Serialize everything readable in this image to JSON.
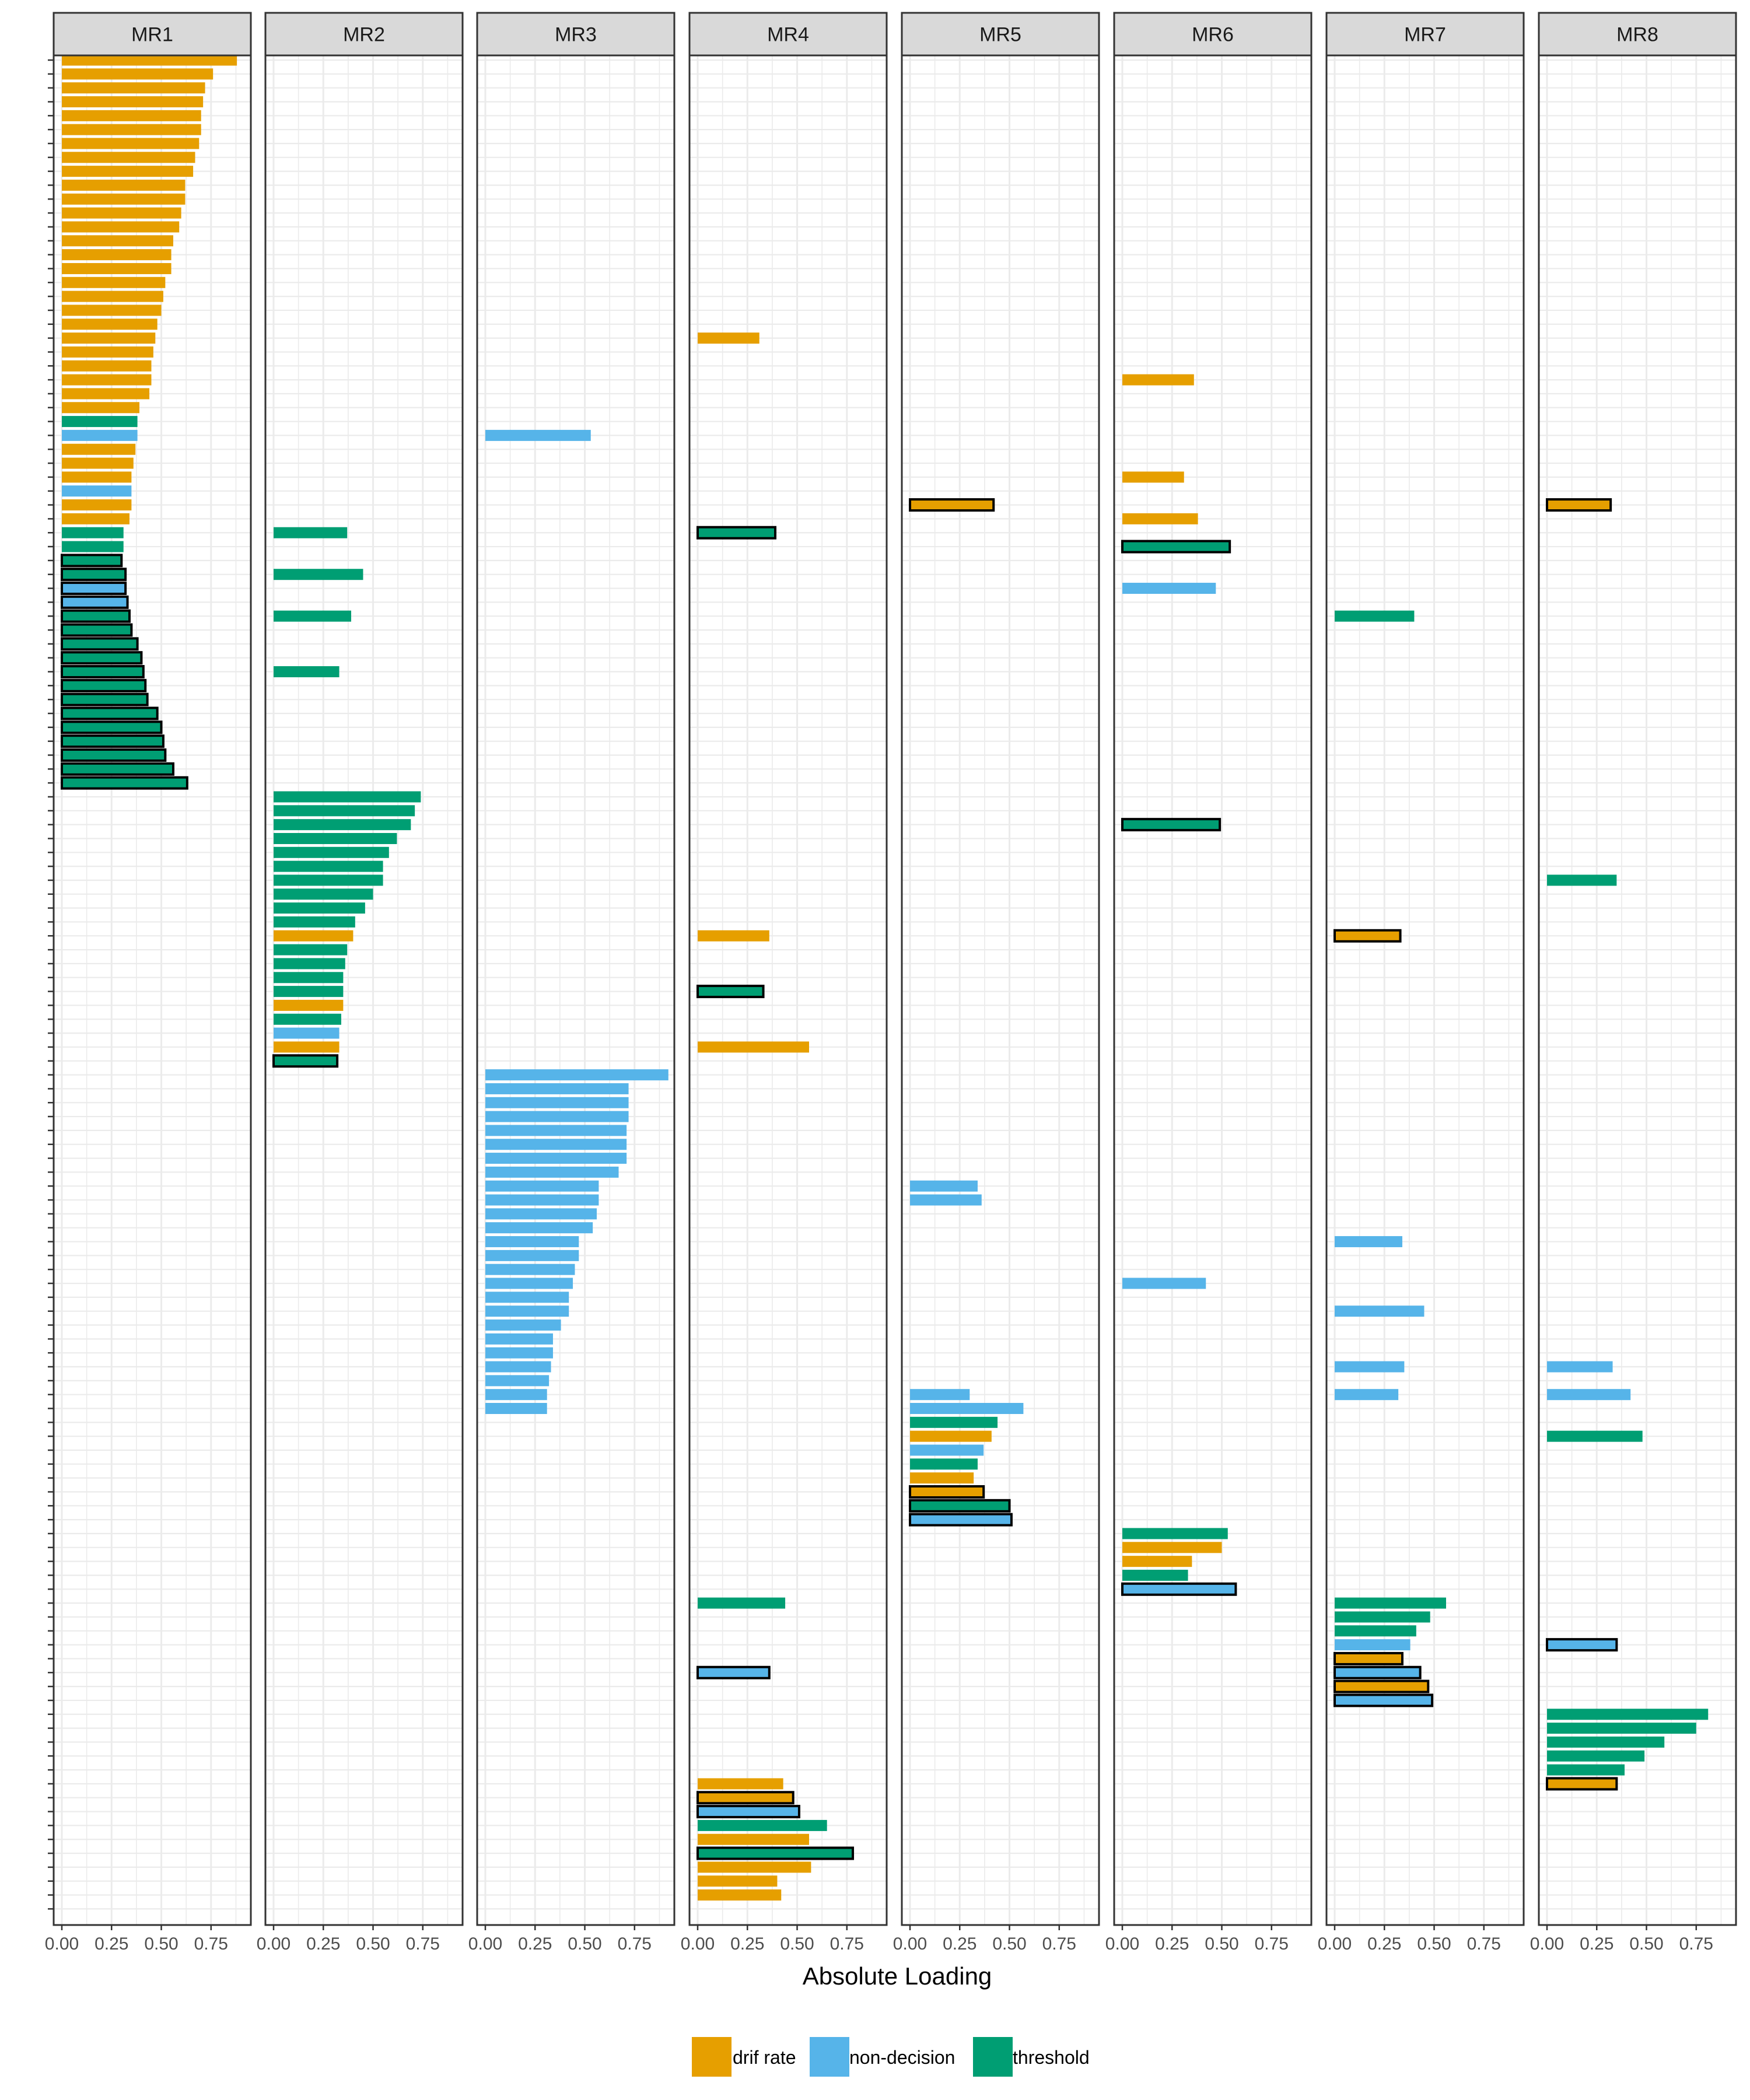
{
  "colors": {
    "drift": "#E69F00",
    "nondecision": "#56B4E9",
    "threshold": "#009E73",
    "strip_bg": "#D9D9D9",
    "grid": "#EBEBEB",
    "panel_border": "#333333",
    "tick_text": "#4D4D4D"
  },
  "chart_data": {
    "type": "bar",
    "orientation": "horizontal",
    "facet": "panels",
    "xlabel": "Absolute Loading",
    "ylabel": "",
    "xlim": [
      0,
      0.95
    ],
    "xticks": [
      0,
      0.25,
      0.5,
      0.75
    ],
    "xtick_labels": [
      "0.00",
      "0.25",
      "0.50",
      "0.75"
    ],
    "n_rows": 134,
    "grid": true,
    "legend_position": "bottom",
    "legend": [
      {
        "key": "d",
        "label": "drif rate",
        "color": "#E69F00"
      },
      {
        "key": "n",
        "label": "non-decision",
        "color": "#56B4E9"
      },
      {
        "key": "t",
        "label": "threshold",
        "color": "#009E73"
      }
    ],
    "bar_fields": [
      "row_index",
      "absolute_loading",
      "parameter_type",
      "outlined"
    ],
    "panels": [
      {
        "name": "MR1",
        "bars": [
          [
            0,
            0.88,
            "d",
            0
          ],
          [
            1,
            0.76,
            "d",
            0
          ],
          [
            2,
            0.72,
            "d",
            0
          ],
          [
            3,
            0.71,
            "d",
            0
          ],
          [
            4,
            0.7,
            "d",
            0
          ],
          [
            5,
            0.7,
            "d",
            0
          ],
          [
            6,
            0.69,
            "d",
            0
          ],
          [
            7,
            0.67,
            "d",
            0
          ],
          [
            8,
            0.66,
            "d",
            0
          ],
          [
            9,
            0.62,
            "d",
            0
          ],
          [
            10,
            0.62,
            "d",
            0
          ],
          [
            11,
            0.6,
            "d",
            0
          ],
          [
            12,
            0.59,
            "d",
            0
          ],
          [
            13,
            0.56,
            "d",
            0
          ],
          [
            14,
            0.55,
            "d",
            0
          ],
          [
            15,
            0.55,
            "d",
            0
          ],
          [
            16,
            0.52,
            "d",
            0
          ],
          [
            17,
            0.51,
            "d",
            0
          ],
          [
            18,
            0.5,
            "d",
            0
          ],
          [
            19,
            0.48,
            "d",
            0
          ],
          [
            20,
            0.47,
            "d",
            0
          ],
          [
            21,
            0.46,
            "d",
            0
          ],
          [
            22,
            0.45,
            "d",
            0
          ],
          [
            23,
            0.45,
            "d",
            0
          ],
          [
            24,
            0.44,
            "d",
            0
          ],
          [
            25,
            0.39,
            "d",
            0
          ],
          [
            26,
            0.38,
            "t",
            0
          ],
          [
            27,
            0.38,
            "n",
            0
          ],
          [
            28,
            0.37,
            "d",
            0
          ],
          [
            29,
            0.36,
            "d",
            0
          ],
          [
            30,
            0.35,
            "d",
            0
          ],
          [
            31,
            0.35,
            "n",
            0
          ],
          [
            32,
            0.35,
            "d",
            0
          ],
          [
            33,
            0.34,
            "d",
            0
          ],
          [
            34,
            0.31,
            "t",
            0
          ],
          [
            35,
            0.31,
            "t",
            0
          ],
          [
            36,
            0.3,
            "t",
            1
          ],
          [
            37,
            0.32,
            "t",
            1
          ],
          [
            38,
            0.32,
            "n",
            1
          ],
          [
            39,
            0.33,
            "n",
            1
          ],
          [
            40,
            0.34,
            "t",
            1
          ],
          [
            41,
            0.35,
            "t",
            1
          ],
          [
            42,
            0.38,
            "t",
            1
          ],
          [
            43,
            0.4,
            "t",
            1
          ],
          [
            44,
            0.41,
            "t",
            1
          ],
          [
            45,
            0.42,
            "t",
            1
          ],
          [
            46,
            0.43,
            "t",
            1
          ],
          [
            47,
            0.48,
            "t",
            1
          ],
          [
            48,
            0.5,
            "t",
            1
          ],
          [
            49,
            0.51,
            "t",
            1
          ],
          [
            50,
            0.52,
            "t",
            1
          ],
          [
            51,
            0.56,
            "t",
            1
          ],
          [
            52,
            0.63,
            "t",
            1
          ]
        ]
      },
      {
        "name": "MR2",
        "bars": [
          [
            34,
            0.37,
            "t",
            0
          ],
          [
            37,
            0.45,
            "t",
            0
          ],
          [
            40,
            0.39,
            "t",
            0
          ],
          [
            44,
            0.33,
            "t",
            0
          ],
          [
            53,
            0.74,
            "t",
            0
          ],
          [
            54,
            0.71,
            "t",
            0
          ],
          [
            55,
            0.69,
            "t",
            0
          ],
          [
            56,
            0.62,
            "t",
            0
          ],
          [
            57,
            0.58,
            "t",
            0
          ],
          [
            58,
            0.55,
            "t",
            0
          ],
          [
            59,
            0.55,
            "t",
            0
          ],
          [
            60,
            0.5,
            "t",
            0
          ],
          [
            61,
            0.46,
            "t",
            0
          ],
          [
            62,
            0.41,
            "t",
            0
          ],
          [
            63,
            0.4,
            "d",
            0
          ],
          [
            64,
            0.37,
            "t",
            0
          ],
          [
            65,
            0.36,
            "t",
            0
          ],
          [
            66,
            0.35,
            "t",
            0
          ],
          [
            67,
            0.35,
            "t",
            0
          ],
          [
            68,
            0.35,
            "d",
            0
          ],
          [
            69,
            0.34,
            "t",
            0
          ],
          [
            70,
            0.33,
            "n",
            0
          ],
          [
            71,
            0.33,
            "d",
            0
          ],
          [
            72,
            0.32,
            "t",
            1
          ]
        ]
      },
      {
        "name": "MR3",
        "bars": [
          [
            27,
            0.53,
            "n",
            0
          ],
          [
            73,
            0.92,
            "n",
            0
          ],
          [
            74,
            0.72,
            "n",
            0
          ],
          [
            75,
            0.72,
            "n",
            0
          ],
          [
            76,
            0.72,
            "n",
            0
          ],
          [
            77,
            0.71,
            "n",
            0
          ],
          [
            78,
            0.71,
            "n",
            0
          ],
          [
            79,
            0.71,
            "n",
            0
          ],
          [
            80,
            0.67,
            "n",
            0
          ],
          [
            81,
            0.57,
            "n",
            0
          ],
          [
            82,
            0.57,
            "n",
            0
          ],
          [
            83,
            0.56,
            "n",
            0
          ],
          [
            84,
            0.54,
            "n",
            0
          ],
          [
            85,
            0.47,
            "n",
            0
          ],
          [
            86,
            0.47,
            "n",
            0
          ],
          [
            87,
            0.45,
            "n",
            0
          ],
          [
            88,
            0.44,
            "n",
            0
          ],
          [
            89,
            0.42,
            "n",
            0
          ],
          [
            90,
            0.42,
            "n",
            0
          ],
          [
            91,
            0.38,
            "n",
            0
          ],
          [
            92,
            0.34,
            "n",
            0
          ],
          [
            93,
            0.34,
            "n",
            0
          ],
          [
            94,
            0.33,
            "n",
            0
          ],
          [
            95,
            0.32,
            "n",
            0
          ],
          [
            96,
            0.31,
            "n",
            0
          ],
          [
            97,
            0.31,
            "n",
            0
          ]
        ]
      },
      {
        "name": "MR4",
        "bars": [
          [
            20,
            0.31,
            "d",
            0
          ],
          [
            34,
            0.39,
            "t",
            1
          ],
          [
            63,
            0.36,
            "d",
            0
          ],
          [
            67,
            0.33,
            "t",
            1
          ],
          [
            71,
            0.56,
            "d",
            0
          ],
          [
            111,
            0.44,
            "t",
            0
          ],
          [
            116,
            0.36,
            "n",
            1
          ],
          [
            124,
            0.43,
            "d",
            0
          ],
          [
            125,
            0.48,
            "d",
            1
          ],
          [
            126,
            0.51,
            "n",
            1
          ],
          [
            127,
            0.65,
            "t",
            0
          ],
          [
            128,
            0.56,
            "d",
            0
          ],
          [
            129,
            0.78,
            "t",
            1
          ],
          [
            130,
            0.57,
            "d",
            0
          ],
          [
            131,
            0.4,
            "d",
            0
          ],
          [
            132,
            0.42,
            "d",
            0
          ]
        ]
      },
      {
        "name": "MR5",
        "bars": [
          [
            32,
            0.42,
            "d",
            1
          ],
          [
            81,
            0.34,
            "n",
            0
          ],
          [
            82,
            0.36,
            "n",
            0
          ],
          [
            96,
            0.3,
            "n",
            0
          ],
          [
            97,
            0.57,
            "n",
            0
          ],
          [
            98,
            0.44,
            "t",
            0
          ],
          [
            99,
            0.41,
            "d",
            0
          ],
          [
            100,
            0.37,
            "n",
            0
          ],
          [
            101,
            0.34,
            "t",
            0
          ],
          [
            102,
            0.32,
            "d",
            0
          ],
          [
            103,
            0.37,
            "d",
            1
          ],
          [
            104,
            0.5,
            "t",
            1
          ],
          [
            105,
            0.51,
            "n",
            1
          ]
        ]
      },
      {
        "name": "MR6",
        "bars": [
          [
            23,
            0.36,
            "d",
            0
          ],
          [
            30,
            0.31,
            "d",
            0
          ],
          [
            33,
            0.38,
            "d",
            0
          ],
          [
            35,
            0.54,
            "t",
            1
          ],
          [
            38,
            0.47,
            "n",
            0
          ],
          [
            55,
            0.49,
            "t",
            1
          ],
          [
            88,
            0.42,
            "n",
            0
          ],
          [
            106,
            0.53,
            "t",
            0
          ],
          [
            107,
            0.5,
            "d",
            0
          ],
          [
            108,
            0.35,
            "d",
            0
          ],
          [
            109,
            0.33,
            "t",
            0
          ],
          [
            110,
            0.57,
            "n",
            1
          ]
        ]
      },
      {
        "name": "MR7",
        "bars": [
          [
            40,
            0.4,
            "t",
            0
          ],
          [
            63,
            0.33,
            "d",
            1
          ],
          [
            85,
            0.34,
            "n",
            0
          ],
          [
            90,
            0.45,
            "n",
            0
          ],
          [
            94,
            0.35,
            "n",
            0
          ],
          [
            96,
            0.32,
            "n",
            0
          ],
          [
            111,
            0.56,
            "t",
            0
          ],
          [
            112,
            0.48,
            "t",
            0
          ],
          [
            113,
            0.41,
            "t",
            0
          ],
          [
            114,
            0.38,
            "n",
            0
          ],
          [
            115,
            0.34,
            "d",
            1
          ],
          [
            116,
            0.43,
            "n",
            1
          ],
          [
            117,
            0.47,
            "d",
            1
          ],
          [
            118,
            0.49,
            "n",
            1
          ]
        ]
      },
      {
        "name": "MR8",
        "bars": [
          [
            32,
            0.32,
            "d",
            1
          ],
          [
            59,
            0.35,
            "t",
            0
          ],
          [
            94,
            0.33,
            "n",
            0
          ],
          [
            96,
            0.42,
            "n",
            0
          ],
          [
            99,
            0.48,
            "t",
            0
          ],
          [
            114,
            0.35,
            "n",
            1
          ],
          [
            119,
            0.81,
            "t",
            0
          ],
          [
            120,
            0.75,
            "t",
            0
          ],
          [
            121,
            0.59,
            "t",
            0
          ],
          [
            122,
            0.49,
            "t",
            0
          ],
          [
            123,
            0.39,
            "t",
            0
          ],
          [
            124,
            0.35,
            "d",
            1
          ]
        ]
      }
    ]
  }
}
